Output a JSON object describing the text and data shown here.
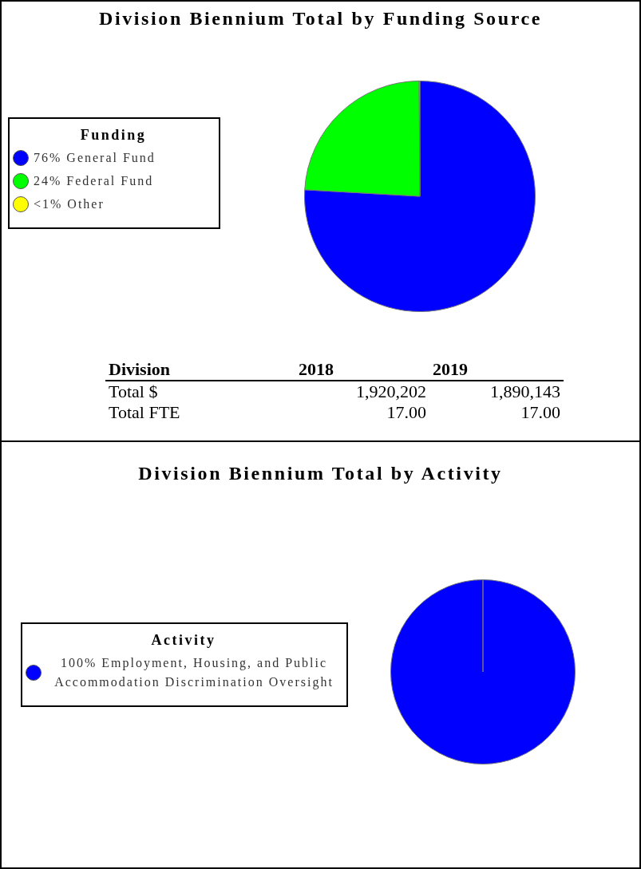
{
  "chart_data": [
    {
      "type": "pie",
      "title": "Division Biennium Total by Funding Source",
      "legend_title": "Funding",
      "legend": "left",
      "categories": [
        "76% General Fund",
        "24% Federal Fund",
        "<1% Other"
      ],
      "values": [
        75.9,
        24,
        0.1
      ],
      "colors": [
        "#0000ff",
        "#00ff00",
        "#ffff00"
      ]
    },
    {
      "type": "other",
      "annotations": [
        "Division",
        "2018",
        "2019",
        "Total $",
        "1,920,202",
        "1,890,143",
        "Total FTE",
        "17.00",
        "17.00"
      ]
    },
    {
      "type": "pie",
      "title": "Division Biennium Total by Activity",
      "legend_title": "Activity",
      "legend": "left",
      "categories": [
        "100% Employment, Housing, and Public Accommodation Discrimination Oversight"
      ],
      "values": [
        100
      ],
      "colors": [
        "#0000ff"
      ]
    }
  ]
}
